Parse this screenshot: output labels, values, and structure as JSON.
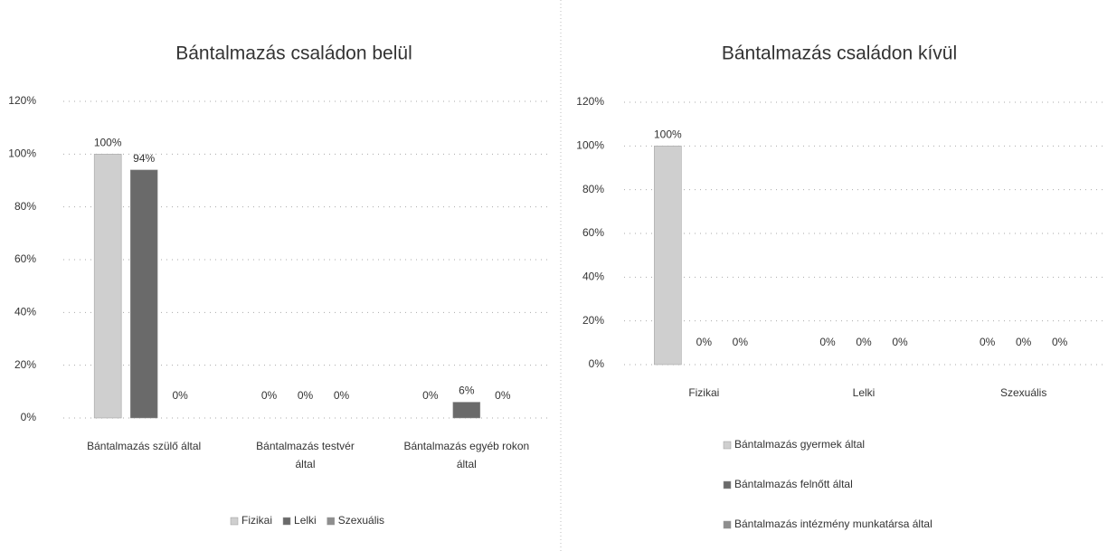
{
  "chart_data": [
    {
      "type": "bar",
      "title": "Bántalmazás családon belül",
      "categories": [
        "Bántalmazás szülő által",
        "Bántalmazás testvér által",
        "Bántalmazás egyéb rokon által"
      ],
      "series": [
        {
          "name": "Fizikai",
          "color": "#cfcfcf",
          "values": [
            100,
            0,
            0
          ],
          "value_labels": [
            "100%",
            "0%",
            "0%"
          ]
        },
        {
          "name": "Lelki",
          "color": "#6a6a6a",
          "values": [
            94,
            0,
            6
          ],
          "value_labels": [
            "94%",
            "0%",
            "6%"
          ]
        },
        {
          "name": "Szexuális",
          "color": "#8e8e8e",
          "values": [
            0,
            0,
            0
          ],
          "value_labels": [
            "0%",
            "0%",
            "0%"
          ]
        }
      ],
      "ylim": [
        0,
        120
      ],
      "yticks": [
        {
          "value": 0,
          "label": "0%"
        },
        {
          "value": 20,
          "label": "20%"
        },
        {
          "value": 40,
          "label": "40%"
        },
        {
          "value": 60,
          "label": "60%"
        },
        {
          "value": 80,
          "label": "80%"
        },
        {
          "value": 100,
          "label": "100%"
        },
        {
          "value": 120,
          "label": "120%"
        }
      ],
      "grid": true,
      "legend": "bottom"
    },
    {
      "type": "bar",
      "title": "Bántalmazás családon kívül",
      "categories": [
        "Fizikai",
        "Lelki",
        "Szexuális"
      ],
      "series": [
        {
          "name": "Bántalmazás gyermek által",
          "color": "#cfcfcf",
          "values": [
            100,
            0,
            0
          ],
          "value_labels": [
            "100%",
            "0%",
            "0%"
          ]
        },
        {
          "name": "Bántalmazás felnőtt által",
          "color": "#6a6a6a",
          "values": [
            0,
            0,
            0
          ],
          "value_labels": [
            "0%",
            "0%",
            "0%"
          ]
        },
        {
          "name": "Bántalmazás intézmény munkatársa által",
          "color": "#8e8e8e",
          "values": [
            0,
            0,
            0
          ],
          "value_labels": [
            "0%",
            "0%",
            "0%"
          ]
        }
      ],
      "ylim": [
        0,
        120
      ],
      "yticks": [
        {
          "value": 0,
          "label": "0%"
        },
        {
          "value": 20,
          "label": "20%"
        },
        {
          "value": 40,
          "label": "40%"
        },
        {
          "value": 60,
          "label": "60%"
        },
        {
          "value": 80,
          "label": "80%"
        },
        {
          "value": 100,
          "label": "100%"
        },
        {
          "value": 120,
          "label": "120%"
        }
      ],
      "grid": true,
      "legend": "bottom"
    }
  ]
}
